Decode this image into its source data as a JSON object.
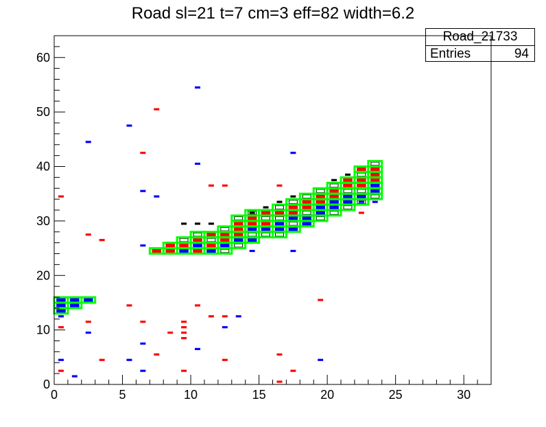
{
  "chart_data": {
    "type": "heatmap",
    "title": "Road sl=21 t=7 cm=3 eff=82 width=6.2",
    "xlabel": "",
    "ylabel": "",
    "xlim": [
      0,
      32
    ],
    "ylim": [
      0,
      64
    ],
    "x_ticks": [
      0,
      5,
      10,
      15,
      20,
      25,
      30
    ],
    "y_ticks": [
      0,
      10,
      20,
      30,
      40,
      50,
      60
    ],
    "grid": false,
    "stats_box": {
      "name": "Road_21733",
      "entries_label": "Entries",
      "entries_value": "94",
      "position": "top-right"
    },
    "colors": {
      "red": "#ff0000",
      "blue": "#0000ff",
      "black": "#000000",
      "green": "#00ff00"
    },
    "red_hits": [
      [
        0.5,
        34.5
      ],
      [
        0.5,
        10.5
      ],
      [
        0.5,
        2.5
      ],
      [
        2.5,
        27.5
      ],
      [
        2.5,
        11.5
      ],
      [
        3.5,
        26.5
      ],
      [
        3.5,
        4.5
      ],
      [
        5.5,
        14.5
      ],
      [
        6.5,
        42.5
      ],
      [
        6.5,
        11.5
      ],
      [
        7.5,
        50.5
      ],
      [
        7.5,
        5.5
      ],
      [
        8.5,
        9.5
      ],
      [
        9.5,
        11.5
      ],
      [
        9.5,
        10.5
      ],
      [
        9.5,
        9.5
      ],
      [
        9.5,
        8.5
      ],
      [
        9.5,
        2.5
      ],
      [
        10.5,
        14.5
      ],
      [
        11.5,
        36.5
      ],
      [
        11.5,
        12.5
      ],
      [
        12.5,
        36.5
      ],
      [
        12.5,
        12.5
      ],
      [
        12.5,
        4.5
      ],
      [
        16.5,
        36.5
      ],
      [
        16.5,
        5.5
      ],
      [
        16.5,
        0.5
      ],
      [
        17.5,
        2.5
      ],
      [
        19.5,
        15.5
      ],
      [
        22.5,
        31.5
      ],
      [
        23.5,
        39.5
      ],
      [
        23.5,
        35.5
      ]
    ],
    "blue_hits": [
      [
        0.5,
        12.5
      ],
      [
        0.5,
        4.5
      ],
      [
        1.5,
        1.5
      ],
      [
        2.5,
        44.5
      ],
      [
        2.5,
        9.5
      ],
      [
        5.5,
        47.5
      ],
      [
        5.5,
        4.5
      ],
      [
        6.5,
        35.5
      ],
      [
        6.5,
        25.5
      ],
      [
        6.5,
        7.5
      ],
      [
        6.5,
        2.5
      ],
      [
        7.5,
        34.5
      ],
      [
        10.5,
        54.5
      ],
      [
        10.5,
        40.5
      ],
      [
        10.5,
        6.5
      ],
      [
        12.5,
        10.5
      ],
      [
        13.5,
        12.5
      ],
      [
        14.5,
        24.5
      ],
      [
        17.5,
        42.5
      ],
      [
        17.5,
        24.5
      ],
      [
        19.5,
        4.5
      ],
      [
        22.5,
        33.5
      ],
      [
        23.5,
        33.5
      ]
    ],
    "black_hits": [
      [
        9.5,
        29.5
      ],
      [
        10.5,
        29.5
      ],
      [
        11.5,
        29.5
      ],
      [
        14.5,
        31.5
      ],
      [
        15.5,
        32.5
      ],
      [
        16.5,
        33.5
      ],
      [
        17.5,
        34.5
      ],
      [
        20.5,
        37.5
      ],
      [
        21.5,
        38.5
      ]
    ],
    "road_bins": [
      [
        0.5,
        15.5
      ],
      [
        0.5,
        14.5
      ],
      [
        0.5,
        13.5
      ],
      [
        1.5,
        15.5
      ],
      [
        1.5,
        14.5
      ],
      [
        2.5,
        15.5
      ],
      [
        7.5,
        24.5
      ],
      [
        8.5,
        25.5
      ],
      [
        8.5,
        24.5
      ],
      [
        9.5,
        26.5
      ],
      [
        9.5,
        25.5
      ],
      [
        9.5,
        24.5
      ],
      [
        10.5,
        27.5
      ],
      [
        10.5,
        26.5
      ],
      [
        10.5,
        25.5
      ],
      [
        10.5,
        24.5
      ],
      [
        11.5,
        27.5
      ],
      [
        11.5,
        26.5
      ],
      [
        11.5,
        25.5
      ],
      [
        11.5,
        24.5
      ],
      [
        12.5,
        28.5
      ],
      [
        12.5,
        27.5
      ],
      [
        12.5,
        26.5
      ],
      [
        12.5,
        25.5
      ],
      [
        12.5,
        24.5
      ],
      [
        13.5,
        30.5
      ],
      [
        13.5,
        29.5
      ],
      [
        13.5,
        28.5
      ],
      [
        13.5,
        27.5
      ],
      [
        13.5,
        26.5
      ],
      [
        13.5,
        25.5
      ],
      [
        14.5,
        31.5
      ],
      [
        14.5,
        30.5
      ],
      [
        14.5,
        29.5
      ],
      [
        14.5,
        28.5
      ],
      [
        14.5,
        27.5
      ],
      [
        14.5,
        26.5
      ],
      [
        15.5,
        31.5
      ],
      [
        15.5,
        30.5
      ],
      [
        15.5,
        29.5
      ],
      [
        15.5,
        28.5
      ],
      [
        15.5,
        27.5
      ],
      [
        16.5,
        32.5
      ],
      [
        16.5,
        31.5
      ],
      [
        16.5,
        30.5
      ],
      [
        16.5,
        29.5
      ],
      [
        16.5,
        28.5
      ],
      [
        16.5,
        27.5
      ],
      [
        17.5,
        33.5
      ],
      [
        17.5,
        32.5
      ],
      [
        17.5,
        31.5
      ],
      [
        17.5,
        30.5
      ],
      [
        17.5,
        29.5
      ],
      [
        17.5,
        28.5
      ],
      [
        18.5,
        34.5
      ],
      [
        18.5,
        33.5
      ],
      [
        18.5,
        32.5
      ],
      [
        18.5,
        31.5
      ],
      [
        18.5,
        30.5
      ],
      [
        18.5,
        29.5
      ],
      [
        19.5,
        35.5
      ],
      [
        19.5,
        34.5
      ],
      [
        19.5,
        33.5
      ],
      [
        19.5,
        32.5
      ],
      [
        19.5,
        31.5
      ],
      [
        19.5,
        30.5
      ],
      [
        20.5,
        36.5
      ],
      [
        20.5,
        35.5
      ],
      [
        20.5,
        34.5
      ],
      [
        20.5,
        33.5
      ],
      [
        20.5,
        32.5
      ],
      [
        20.5,
        31.5
      ],
      [
        21.5,
        37.5
      ],
      [
        21.5,
        36.5
      ],
      [
        21.5,
        35.5
      ],
      [
        21.5,
        34.5
      ],
      [
        21.5,
        33.5
      ],
      [
        21.5,
        32.5
      ],
      [
        22.5,
        39.5
      ],
      [
        22.5,
        38.5
      ],
      [
        22.5,
        37.5
      ],
      [
        22.5,
        36.5
      ],
      [
        22.5,
        35.5
      ],
      [
        22.5,
        34.5
      ],
      [
        22.5,
        33.5
      ],
      [
        23.5,
        40.5
      ],
      [
        23.5,
        39.5
      ],
      [
        23.5,
        38.5
      ],
      [
        23.5,
        37.5
      ],
      [
        23.5,
        36.5
      ],
      [
        23.5,
        35.5
      ],
      [
        23.5,
        34.5
      ]
    ],
    "road_fill": [
      [
        0.5,
        15.5,
        "blue"
      ],
      [
        0.5,
        14.5,
        "blue"
      ],
      [
        0.5,
        13.5,
        "blue"
      ],
      [
        1.5,
        15.5,
        "blue"
      ],
      [
        1.5,
        14.5,
        "blue"
      ],
      [
        2.5,
        15.5,
        "blue"
      ],
      [
        7.5,
        24.5,
        "red"
      ],
      [
        8.5,
        25.5,
        "red"
      ],
      [
        8.5,
        24.5,
        "red"
      ],
      [
        9.5,
        26.5,
        "black"
      ],
      [
        9.5,
        25.5,
        "red"
      ],
      [
        9.5,
        24.5,
        "blue"
      ],
      [
        10.5,
        27.5,
        "black"
      ],
      [
        10.5,
        26.5,
        "red"
      ],
      [
        10.5,
        25.5,
        "blue"
      ],
      [
        10.5,
        24.5,
        "red"
      ],
      [
        11.5,
        27.5,
        "red"
      ],
      [
        11.5,
        26.5,
        "black"
      ],
      [
        11.5,
        25.5,
        "red"
      ],
      [
        11.5,
        24.5,
        "blue"
      ],
      [
        12.5,
        28.5,
        "black"
      ],
      [
        12.5,
        27.5,
        "red"
      ],
      [
        12.5,
        26.5,
        "red"
      ],
      [
        12.5,
        25.5,
        "blue"
      ],
      [
        12.5,
        24.5,
        "black"
      ],
      [
        13.5,
        30.5,
        "black"
      ],
      [
        13.5,
        29.5,
        "red"
      ],
      [
        13.5,
        28.5,
        "red"
      ],
      [
        13.5,
        27.5,
        "red"
      ],
      [
        13.5,
        26.5,
        "blue"
      ],
      [
        13.5,
        25.5,
        "black"
      ],
      [
        14.5,
        31.5,
        "black"
      ],
      [
        14.5,
        30.5,
        "red"
      ],
      [
        14.5,
        29.5,
        "red"
      ],
      [
        14.5,
        28.5,
        "blue"
      ],
      [
        14.5,
        27.5,
        "black"
      ],
      [
        14.5,
        26.5,
        "blue"
      ],
      [
        15.5,
        31.5,
        "red"
      ],
      [
        15.5,
        30.5,
        "black"
      ],
      [
        15.5,
        29.5,
        "red"
      ],
      [
        15.5,
        28.5,
        "blue"
      ],
      [
        15.5,
        27.5,
        "black"
      ],
      [
        16.5,
        32.5,
        "black"
      ],
      [
        16.5,
        31.5,
        "red"
      ],
      [
        16.5,
        30.5,
        "black"
      ],
      [
        16.5,
        29.5,
        "blue"
      ],
      [
        16.5,
        28.5,
        "blue"
      ],
      [
        16.5,
        27.5,
        "black"
      ],
      [
        17.5,
        33.5,
        "black"
      ],
      [
        17.5,
        32.5,
        "red"
      ],
      [
        17.5,
        31.5,
        "red"
      ],
      [
        17.5,
        30.5,
        "blue"
      ],
      [
        17.5,
        29.5,
        "black"
      ],
      [
        17.5,
        28.5,
        "blue"
      ],
      [
        18.5,
        34.5,
        "black"
      ],
      [
        18.5,
        33.5,
        "red"
      ],
      [
        18.5,
        32.5,
        "red"
      ],
      [
        18.5,
        31.5,
        "black"
      ],
      [
        18.5,
        30.5,
        "blue"
      ],
      [
        18.5,
        29.5,
        "blue"
      ],
      [
        19.5,
        35.5,
        "black"
      ],
      [
        19.5,
        34.5,
        "red"
      ],
      [
        19.5,
        33.5,
        "red"
      ],
      [
        19.5,
        32.5,
        "blue"
      ],
      [
        19.5,
        31.5,
        "blue"
      ],
      [
        19.5,
        30.5,
        "black"
      ],
      [
        20.5,
        36.5,
        "black"
      ],
      [
        20.5,
        35.5,
        "red"
      ],
      [
        20.5,
        34.5,
        "red"
      ],
      [
        20.5,
        33.5,
        "blue"
      ],
      [
        20.5,
        32.5,
        "blue"
      ],
      [
        20.5,
        31.5,
        "black"
      ],
      [
        21.5,
        37.5,
        "red"
      ],
      [
        21.5,
        36.5,
        "red"
      ],
      [
        21.5,
        35.5,
        "black"
      ],
      [
        21.5,
        34.5,
        "blue"
      ],
      [
        21.5,
        33.5,
        "blue"
      ],
      [
        21.5,
        32.5,
        "black"
      ],
      [
        22.5,
        39.5,
        "red"
      ],
      [
        22.5,
        38.5,
        "black"
      ],
      [
        22.5,
        37.5,
        "red"
      ],
      [
        22.5,
        36.5,
        "red"
      ],
      [
        22.5,
        35.5,
        "black"
      ],
      [
        22.5,
        34.5,
        "blue"
      ],
      [
        22.5,
        33.5,
        "black"
      ],
      [
        23.5,
        40.5,
        "black"
      ],
      [
        23.5,
        39.5,
        "red"
      ],
      [
        23.5,
        38.5,
        "red"
      ],
      [
        23.5,
        37.5,
        "red"
      ],
      [
        23.5,
        36.5,
        "blue"
      ],
      [
        23.5,
        35.5,
        "blue"
      ],
      [
        23.5,
        34.5,
        "black"
      ]
    ]
  }
}
